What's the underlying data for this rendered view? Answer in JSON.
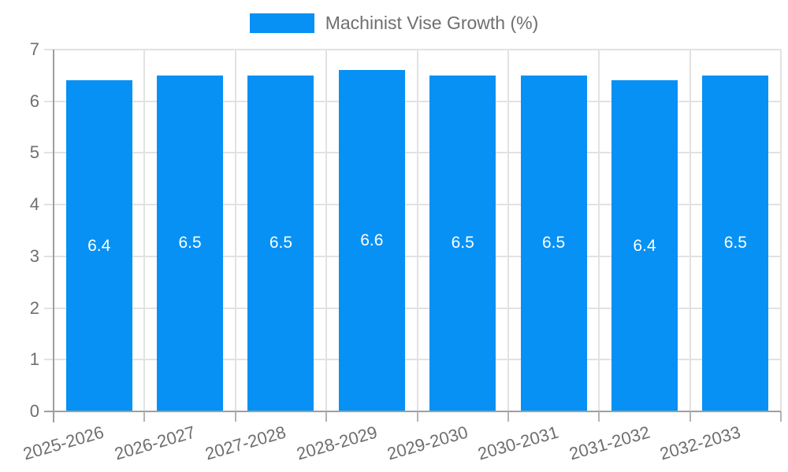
{
  "chart_data": {
    "type": "bar",
    "title": "",
    "legend": {
      "label": "Machinist Vise Growth (%)",
      "position": "top"
    },
    "categories": [
      "2025-2026",
      "2026-2027",
      "2027-2028",
      "2028-2029",
      "2029-2030",
      "2030-2031",
      "2031-2032",
      "2032-2033"
    ],
    "series": [
      {
        "name": "Machinist Vise Growth (%)",
        "values": [
          6.4,
          6.5,
          6.5,
          6.6,
          6.5,
          6.5,
          6.4,
          6.5
        ]
      }
    ],
    "value_labels": [
      "6.4",
      "6.5",
      "6.5",
      "6.6",
      "6.5",
      "6.5",
      "6.4",
      "6.5"
    ],
    "xlabel": "",
    "ylabel": "",
    "ylim": [
      0,
      7
    ],
    "yticks": [
      0,
      1,
      2,
      3,
      4,
      5,
      6,
      7
    ],
    "grid": true,
    "colors": {
      "bar": "#0791f4",
      "bar_label": "#ffffff",
      "axis_text": "#6f6f6f",
      "grid_line": "#e2e2e2",
      "axis_line": "#9e9e9e",
      "tick_line": "#b3b3b3",
      "background": "#ffffff"
    }
  }
}
